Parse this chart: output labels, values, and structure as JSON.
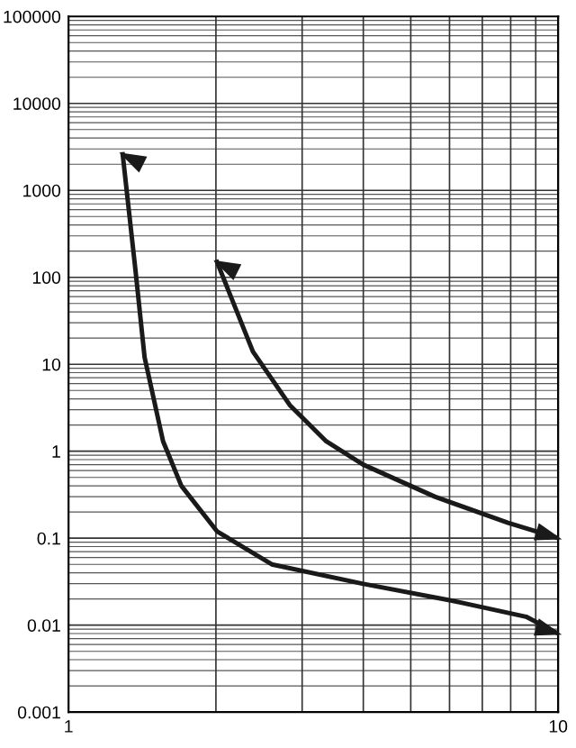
{
  "chart_data": {
    "type": "line",
    "log": "xy",
    "grid": true,
    "legend": false,
    "marker": "none",
    "line_style": "solid",
    "series": [
      {
        "color": "#1a1a1a",
        "x": [
          1.29,
          1.37,
          1.43,
          1.56,
          1.7,
          2.01,
          2.6,
          3.98,
          6.1,
          8.6,
          10
        ],
        "values": [
          2600,
          120,
          12,
          1.3,
          0.4,
          0.12,
          0.05,
          0.03,
          0.019,
          0.0125,
          0.008
        ]
      },
      {
        "color": "#1a1a1a",
        "x": [
          2.01,
          2.38,
          2.83,
          3.36,
          4,
          5.6,
          7.9,
          10
        ],
        "values": [
          150,
          14,
          3.4,
          1.3,
          0.7,
          0.3,
          0.15,
          0.1
        ]
      }
    ],
    "xlim": [
      1,
      10
    ],
    "xticks": [
      1,
      {
        "value": 2,
        "label": null
      },
      {
        "value": 3,
        "label": null
      },
      {
        "value": 4,
        "label": null
      },
      {
        "value": 5,
        "label": null
      },
      {
        "value": 6,
        "label": null
      },
      {
        "value": 7,
        "label": null
      },
      {
        "value": 8,
        "label": null
      },
      {
        "value": 9,
        "label": null
      },
      10
    ],
    "ylim": [
      0.001,
      100000
    ],
    "yticks": [
      {
        "value": 0.001,
        "label": "0.001"
      },
      {
        "value": 0.01,
        "label": "0.01"
      },
      {
        "value": 0.1,
        "label": "0.1"
      },
      1,
      10,
      100,
      1000,
      10000,
      100000
    ]
  }
}
